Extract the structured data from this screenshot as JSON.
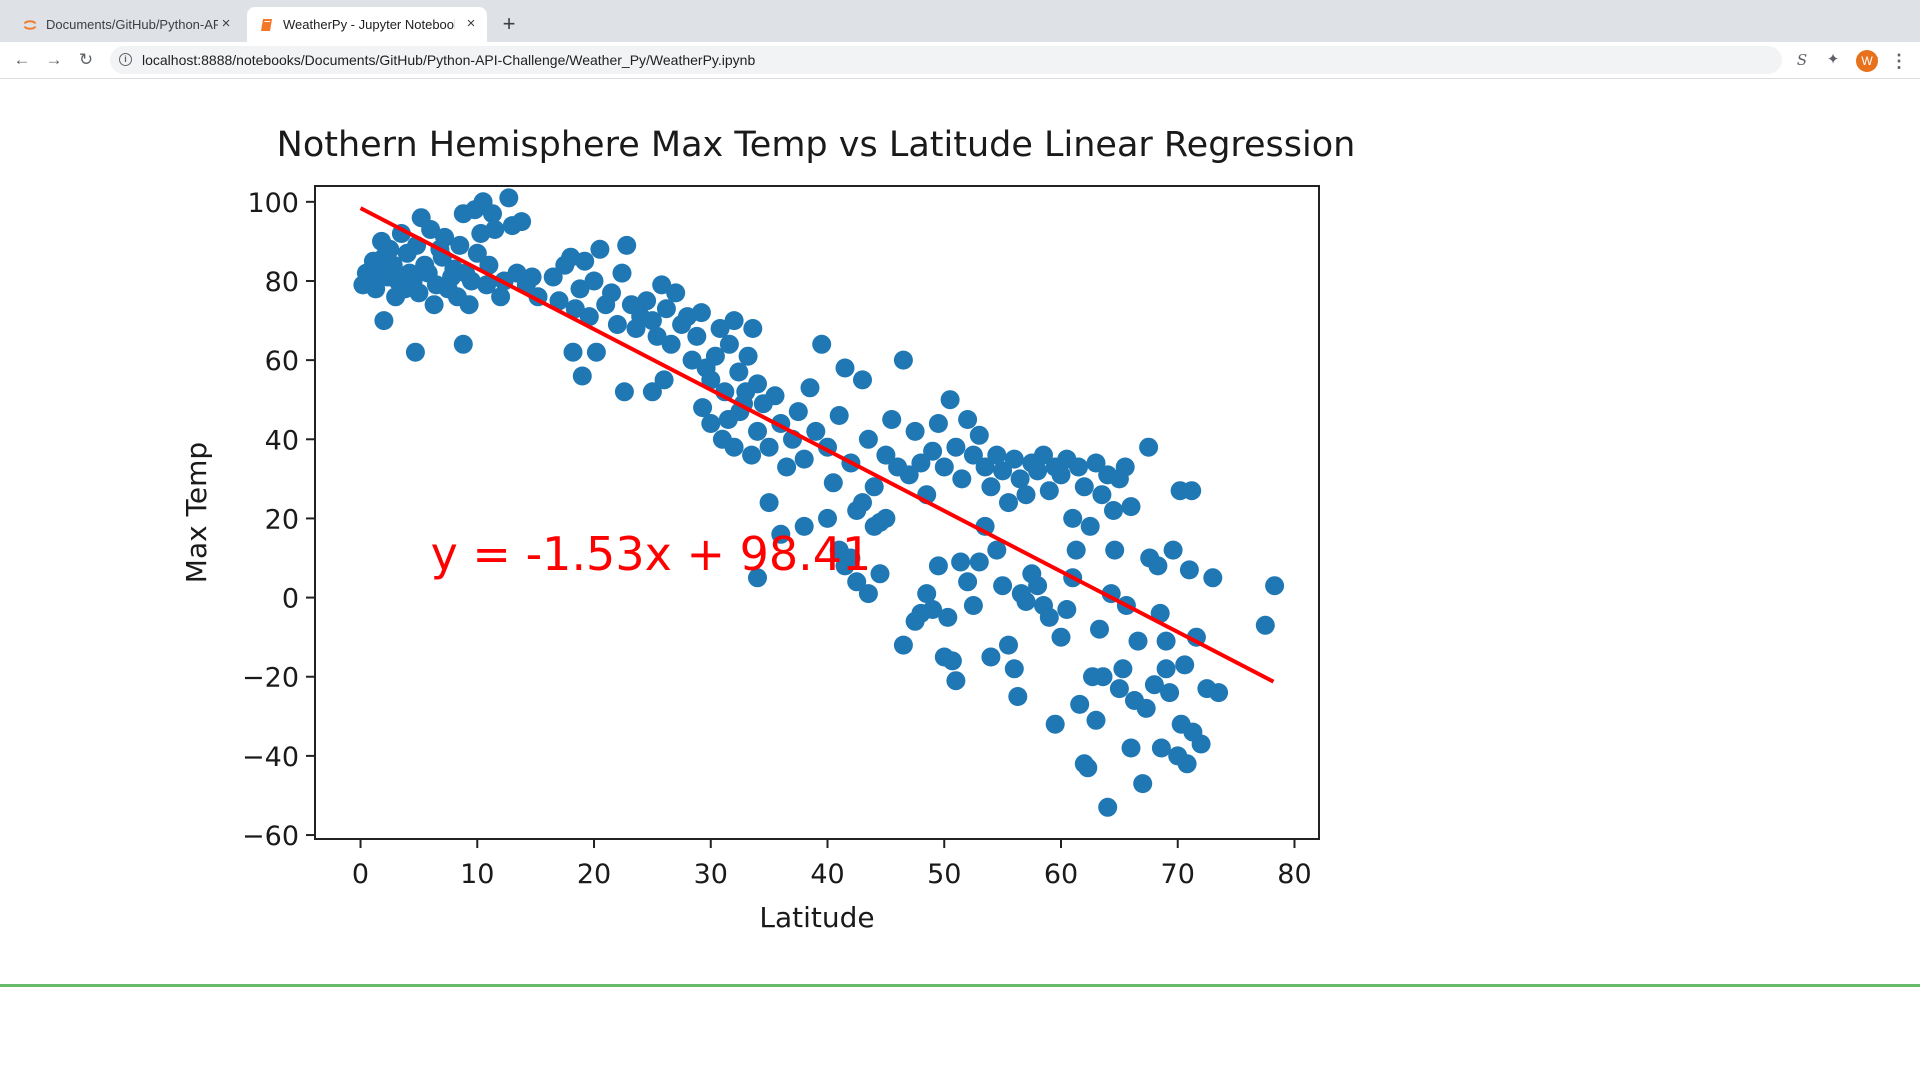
{
  "browser": {
    "tabs": [
      {
        "title": "Documents/GitHub/Python-API-Challenge/",
        "icon": "jupyter-icon",
        "active": false
      },
      {
        "title": "WeatherPy - Jupyter Notebook",
        "icon": "notebook-icon",
        "active": true
      }
    ],
    "close_glyph": "×",
    "new_tab_glyph": "+",
    "url": "localhost:8888/notebooks/Documents/GitHub/Python-API-Challenge/Weather_Py/WeatherPy.ipynb",
    "nav": {
      "back": "←",
      "forward": "→",
      "reload": "↻"
    },
    "info_glyph": "i",
    "star_glyph": "☆",
    "ext_s_glyph": "S",
    "ext_puzzle_glyph": "✦",
    "avatar_letter": "W",
    "menu_glyph": "⋮"
  },
  "notebook": {
    "next_heading_partial": ""
  },
  "colors": {
    "points": "#1f77b4",
    "regression": "#ff0000",
    "cell_border": "#66bb6a",
    "jupyter_orange": "#f37726"
  },
  "chart_data": {
    "type": "scatter",
    "title": "Nothern Hemisphere Max Temp vs Latitude Linear Regression",
    "xlabel": "Latitude",
    "ylabel": "Max Temp",
    "xlim": [
      -3.9,
      82.1
    ],
    "ylim": [
      -61,
      104
    ],
    "xticks": [
      0,
      10,
      20,
      30,
      40,
      50,
      60,
      70,
      80
    ],
    "yticks": [
      -60,
      -40,
      -20,
      0,
      20,
      40,
      60,
      80,
      100
    ],
    "grid": false,
    "regression": {
      "slope": -1.53,
      "intercept": 98.41,
      "x_range": [
        0,
        78.2
      ]
    },
    "annotation": {
      "text": "y = -1.53x + 98.41",
      "x": 6,
      "y": 11
    },
    "points": [
      [
        0.2,
        79
      ],
      [
        0.5,
        82
      ],
      [
        0.8,
        80
      ],
      [
        1.1,
        85
      ],
      [
        1.3,
        78
      ],
      [
        1.5,
        83
      ],
      [
        1.8,
        90
      ],
      [
        2,
        86
      ],
      [
        2.3,
        81
      ],
      [
        2.5,
        88
      ],
      [
        2.8,
        84
      ],
      [
        3,
        76
      ],
      [
        3.2,
        80
      ],
      [
        3.5,
        92
      ],
      [
        3.8,
        78
      ],
      [
        4,
        87
      ],
      [
        4.2,
        82
      ],
      [
        4.5,
        80
      ],
      [
        4.8,
        89
      ],
      [
        5,
        77
      ],
      [
        5.2,
        96
      ],
      [
        5.5,
        84
      ],
      [
        5.8,
        82
      ],
      [
        6,
        93
      ],
      [
        6.3,
        74
      ],
      [
        6.5,
        79
      ],
      [
        6.8,
        88
      ],
      [
        7,
        86
      ],
      [
        7.2,
        91
      ],
      [
        7.5,
        78
      ],
      [
        7.8,
        81
      ],
      [
        8,
        83
      ],
      [
        8.3,
        76
      ],
      [
        8.5,
        89
      ],
      [
        8.8,
        97
      ],
      [
        9,
        82
      ],
      [
        9.3,
        74
      ],
      [
        9.5,
        80
      ],
      [
        9.8,
        98
      ],
      [
        10,
        87
      ],
      [
        10.3,
        92
      ],
      [
        10.5,
        100
      ],
      [
        10.8,
        79
      ],
      [
        11,
        84
      ],
      [
        11.3,
        97
      ],
      [
        11.5,
        93
      ],
      [
        12,
        76
      ],
      [
        12.3,
        80
      ],
      [
        12.7,
        101
      ],
      [
        13,
        94
      ],
      [
        13.4,
        82
      ],
      [
        13.8,
        95
      ],
      [
        14.2,
        79
      ],
      [
        14.7,
        81
      ],
      [
        15.2,
        76
      ],
      [
        2,
        70
      ],
      [
        4.7,
        62
      ],
      [
        8.8,
        64
      ],
      [
        16.5,
        81
      ],
      [
        17,
        75
      ],
      [
        17.5,
        84
      ],
      [
        18,
        86
      ],
      [
        18.4,
        73
      ],
      [
        18.8,
        78
      ],
      [
        19.2,
        85
      ],
      [
        19.6,
        71
      ],
      [
        20,
        80
      ],
      [
        20.5,
        88
      ],
      [
        21,
        74
      ],
      [
        21.5,
        77
      ],
      [
        22,
        69
      ],
      [
        22.4,
        82
      ],
      [
        22.8,
        89
      ],
      [
        23.2,
        74
      ],
      [
        23.6,
        68
      ],
      [
        24,
        71
      ],
      [
        24.5,
        75
      ],
      [
        25,
        70
      ],
      [
        25.4,
        66
      ],
      [
        25.8,
        79
      ],
      [
        26.2,
        73
      ],
      [
        26.6,
        64
      ],
      [
        27,
        77
      ],
      [
        27.5,
        69
      ],
      [
        28,
        71
      ],
      [
        28.4,
        60
      ],
      [
        28.8,
        66
      ],
      [
        29.2,
        72
      ],
      [
        29.6,
        58
      ],
      [
        30,
        55
      ],
      [
        30.4,
        61
      ],
      [
        30.8,
        68
      ],
      [
        31.2,
        52
      ],
      [
        31.6,
        64
      ],
      [
        32,
        70
      ],
      [
        32.4,
        57
      ],
      [
        32.8,
        49
      ],
      [
        33.2,
        61
      ],
      [
        33.6,
        68
      ],
      [
        34,
        54
      ],
      [
        18.2,
        62
      ],
      [
        19,
        56
      ],
      [
        20.2,
        62
      ],
      [
        22.6,
        52
      ],
      [
        25,
        52
      ],
      [
        26,
        55
      ],
      [
        29.3,
        48
      ],
      [
        30,
        44
      ],
      [
        31,
        40
      ],
      [
        31.5,
        45
      ],
      [
        32,
        38
      ],
      [
        32.5,
        47
      ],
      [
        33,
        52
      ],
      [
        33.5,
        36
      ],
      [
        34,
        42
      ],
      [
        34.5,
        49
      ],
      [
        35,
        38
      ],
      [
        35.5,
        51
      ],
      [
        36,
        44
      ],
      [
        36.5,
        33
      ],
      [
        37,
        40
      ],
      [
        37.5,
        47
      ],
      [
        38,
        35
      ],
      [
        38.5,
        53
      ],
      [
        39,
        42
      ],
      [
        39.5,
        64
      ],
      [
        40,
        38
      ],
      [
        40.5,
        29
      ],
      [
        41,
        46
      ],
      [
        41.5,
        58
      ],
      [
        42,
        34
      ],
      [
        42.5,
        22
      ],
      [
        43,
        55
      ],
      [
        43.5,
        40
      ],
      [
        44,
        28
      ],
      [
        44.5,
        19
      ],
      [
        45,
        36
      ],
      [
        45.5,
        45
      ],
      [
        46,
        33
      ],
      [
        46.5,
        60
      ],
      [
        47,
        31
      ],
      [
        47.5,
        42
      ],
      [
        48,
        34
      ],
      [
        48.5,
        26
      ],
      [
        49,
        37
      ],
      [
        49.5,
        44
      ],
      [
        50,
        33
      ],
      [
        50.5,
        50
      ],
      [
        51,
        38
      ],
      [
        51.5,
        30
      ],
      [
        52,
        45
      ],
      [
        52.5,
        36
      ],
      [
        53,
        41
      ],
      [
        53.5,
        33
      ],
      [
        54,
        28
      ],
      [
        54.5,
        36
      ],
      [
        55,
        32
      ],
      [
        55.5,
        24
      ],
      [
        56,
        35
      ],
      [
        56.5,
        30
      ],
      [
        57,
        26
      ],
      [
        57.5,
        34
      ],
      [
        58,
        32
      ],
      [
        58.5,
        36
      ],
      [
        59,
        27
      ],
      [
        59.5,
        33
      ],
      [
        60,
        31
      ],
      [
        60.5,
        35
      ],
      [
        61,
        20
      ],
      [
        61.5,
        33
      ],
      [
        62,
        28
      ],
      [
        62.5,
        18
      ],
      [
        63,
        34
      ],
      [
        63.5,
        26
      ],
      [
        64,
        31
      ],
      [
        64.5,
        22
      ],
      [
        65,
        30
      ],
      [
        65.5,
        33
      ],
      [
        66,
        23
      ],
      [
        34,
        5
      ],
      [
        35,
        24
      ],
      [
        36,
        16
      ],
      [
        38,
        18
      ],
      [
        40,
        20
      ],
      [
        41,
        12
      ],
      [
        41.5,
        8
      ],
      [
        42,
        10
      ],
      [
        42.5,
        4
      ],
      [
        43,
        24
      ],
      [
        43.5,
        1
      ],
      [
        44,
        18
      ],
      [
        44.5,
        6
      ],
      [
        45,
        20
      ],
      [
        46.5,
        -12
      ],
      [
        47.5,
        -6
      ],
      [
        48,
        -4
      ],
      [
        48.5,
        1
      ],
      [
        49,
        -3
      ],
      [
        49.5,
        8
      ],
      [
        50,
        -15
      ],
      [
        50.3,
        -5
      ],
      [
        50.7,
        -16
      ],
      [
        51,
        -21
      ],
      [
        51.4,
        9
      ],
      [
        52,
        4
      ],
      [
        52.5,
        -2
      ],
      [
        53,
        9
      ],
      [
        53.5,
        18
      ],
      [
        54,
        -15
      ],
      [
        54.5,
        12
      ],
      [
        55,
        3
      ],
      [
        55.5,
        -12
      ],
      [
        56,
        -18
      ],
      [
        56.3,
        -25
      ],
      [
        56.6,
        1
      ],
      [
        57,
        -1
      ],
      [
        57.5,
        6
      ],
      [
        58,
        3
      ],
      [
        58.5,
        -2
      ],
      [
        59,
        -5
      ],
      [
        59.5,
        -32
      ],
      [
        60,
        -10
      ],
      [
        60.5,
        -3
      ],
      [
        61,
        5
      ],
      [
        61.3,
        12
      ],
      [
        61.6,
        -27
      ],
      [
        62,
        -42
      ],
      [
        62.3,
        -43
      ],
      [
        62.7,
        -20
      ],
      [
        63,
        -31
      ],
      [
        63.3,
        -8
      ],
      [
        63.6,
        -20
      ],
      [
        64,
        -53
      ],
      [
        64.3,
        1
      ],
      [
        64.6,
        12
      ],
      [
        65,
        -23
      ],
      [
        65.3,
        -18
      ],
      [
        65.6,
        -2
      ],
      [
        66,
        -38
      ],
      [
        66.3,
        -26
      ],
      [
        66.6,
        -11
      ],
      [
        67,
        -47
      ],
      [
        67.3,
        -28
      ],
      [
        67.6,
        10
      ],
      [
        68,
        -22
      ],
      [
        68.3,
        8
      ],
      [
        68.6,
        -38
      ],
      [
        69,
        -11
      ],
      [
        69.3,
        -24
      ],
      [
        69.6,
        12
      ],
      [
        70,
        -40
      ],
      [
        70.3,
        -32
      ],
      [
        70.6,
        -17
      ],
      [
        71,
        7
      ],
      [
        71.3,
        -34
      ],
      [
        71.6,
        -10
      ],
      [
        72,
        -37
      ],
      [
        72.5,
        -23
      ],
      [
        73,
        5
      ],
      [
        73.5,
        -24
      ],
      [
        70.2,
        27
      ],
      [
        71.2,
        27
      ],
      [
        67.5,
        38
      ],
      [
        68.5,
        -4
      ],
      [
        69,
        -18
      ],
      [
        70.8,
        -42
      ],
      [
        77.5,
        -7
      ],
      [
        78.3,
        3
      ]
    ]
  }
}
